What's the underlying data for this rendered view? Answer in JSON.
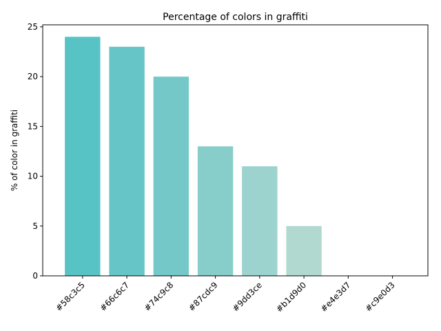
{
  "chart_data": {
    "type": "bar",
    "title": "Percentage of colors in graffiti",
    "xlabel": "",
    "ylabel": "% of color in graffiti",
    "categories": [
      "#58c3c5",
      "#66c6c7",
      "#74c9c8",
      "#87cdc9",
      "#9dd3ce",
      "#b1d9d0",
      "#e4e3d7",
      "#c9e0d3"
    ],
    "values": [
      24,
      23,
      20,
      13,
      11,
      5,
      0,
      0
    ],
    "bar_colors": [
      "#58c3c5",
      "#66c6c7",
      "#74c9c8",
      "#87cdc9",
      "#9dd3ce",
      "#b1d9d0",
      "#e4e3d7",
      "#c9e0d3"
    ],
    "ylim": [
      0,
      25.2
    ],
    "yticks": [
      0,
      5,
      10,
      15,
      20,
      25
    ],
    "grid": false,
    "xtick_rotation": 45
  }
}
